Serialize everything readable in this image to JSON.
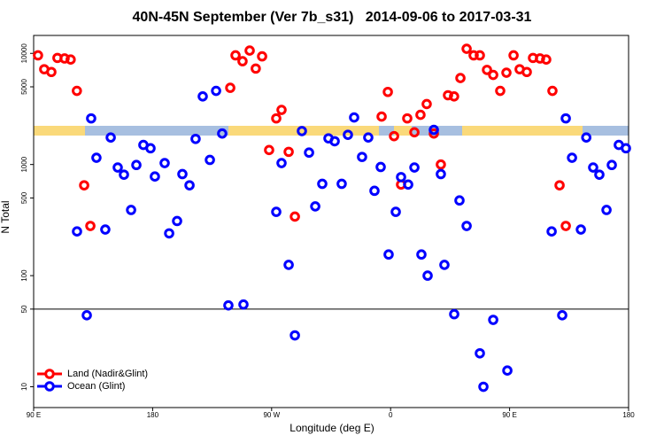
{
  "chart_data": {
    "type": "scatter",
    "title": "40N-45N September (Ver 7b_s31)   2014-09-06 to 2017-03-31",
    "xlabel": "Longitude (deg E)",
    "ylabel": "N Total",
    "log_y": true,
    "legend": "bottom-left",
    "xlim": [
      90,
      540
    ],
    "ylim": [
      6.5,
      14500
    ],
    "xticks": [
      {
        "value": 90,
        "label": "90 E"
      },
      {
        "value": 180,
        "label": "180"
      },
      {
        "value": 270,
        "label": "90 W"
      },
      {
        "value": 360,
        "label": "0"
      },
      {
        "value": 450,
        "label": "90 E"
      },
      {
        "value": 540,
        "label": "180"
      }
    ],
    "yticks": [
      10,
      50,
      100,
      500,
      1000,
      5000,
      10000
    ],
    "reference_line": 50,
    "series": [
      {
        "name": "Land (Nadir&Glint)",
        "color": "#ff0000",
        "x": [
          93.3,
          98,
          103.4,
          108,
          113.4,
          118,
          122.7,
          128.2,
          132.9,
          238.7,
          242.7,
          248,
          253.4,
          258,
          262.8,
          268.1,
          273.5,
          277.5,
          282.9,
          287.6,
          353.2,
          357.9,
          362.6,
          367.9,
          372.6,
          378,
          382.6,
          387.3,
          392.7,
          398,
          403.4,
          408,
          412.8,
          417.5,
          422.8,
          427.5,
          432.9,
          437.6,
          442.9,
          447.6,
          453,
          457.6,
          463,
          467.7,
          473,
          477.7,
          482.4,
          487.8,
          492.5
        ],
        "values": [
          9600,
          7200,
          6800,
          9100,
          9000,
          8800,
          4600,
          650,
          280,
          4900,
          9600,
          8500,
          10600,
          7300,
          9400,
          1350,
          2600,
          3100,
          1300,
          340,
          2700,
          4500,
          1800,
          660,
          2600,
          1950,
          2800,
          3500,
          1900,
          1000,
          4200,
          4100,
          6000,
          11000,
          9600,
          9600,
          7100,
          6400,
          4600,
          6700,
          9600,
          7200,
          6800,
          9100,
          9000,
          8800,
          4600,
          650,
          280
        ]
      },
      {
        "name": "Ocean (Glint)",
        "color": "#0000ff",
        "x": [
          122.8,
          130.2,
          133.5,
          137.5,
          144.2,
          148.3,
          153.6,
          158.3,
          163.7,
          167.7,
          173,
          178.4,
          181.7,
          189.1,
          192.5,
          198.5,
          202.5,
          207.9,
          212.5,
          217.9,
          223.3,
          228,
          232.6,
          237.3,
          248.7,
          273.5,
          277.5,
          282.9,
          287.6,
          292.9,
          298.3,
          303,
          308.3,
          313,
          317.7,
          323,
          327.7,
          332.4,
          338.4,
          343.1,
          347.8,
          352.5,
          358.5,
          363.9,
          367.9,
          373.3,
          378,
          383.3,
          388,
          392.7,
          398,
          400.7,
          408.1,
          412.1,
          417.5,
          427.5,
          430.2,
          437.6,
          448.3,
          481.8,
          489.8,
          492.5,
          497.2,
          503.9,
          508,
          513.2,
          517.9,
          523.3,
          527.3,
          532.6,
          538
        ],
        "values": [
          250,
          44,
          2600,
          1150,
          260,
          1750,
          940,
          810,
          390,
          990,
          1500,
          1400,
          780,
          1030,
          240,
          310,
          820,
          650,
          1700,
          4100,
          1100,
          4600,
          1900,
          54,
          55,
          375,
          1030,
          125,
          29,
          2000,
          1280,
          420,
          670,
          1720,
          1620,
          670,
          1850,
          2650,
          1170,
          1750,
          580,
          950,
          155,
          375,
          770,
          660,
          940,
          155,
          100,
          2050,
          820,
          125,
          45,
          475,
          280,
          20,
          10,
          40,
          14,
          250,
          44,
          2600,
          1150,
          260,
          1750,
          940,
          810,
          390,
          990,
          1500,
          1400
        ]
      }
    ]
  }
}
